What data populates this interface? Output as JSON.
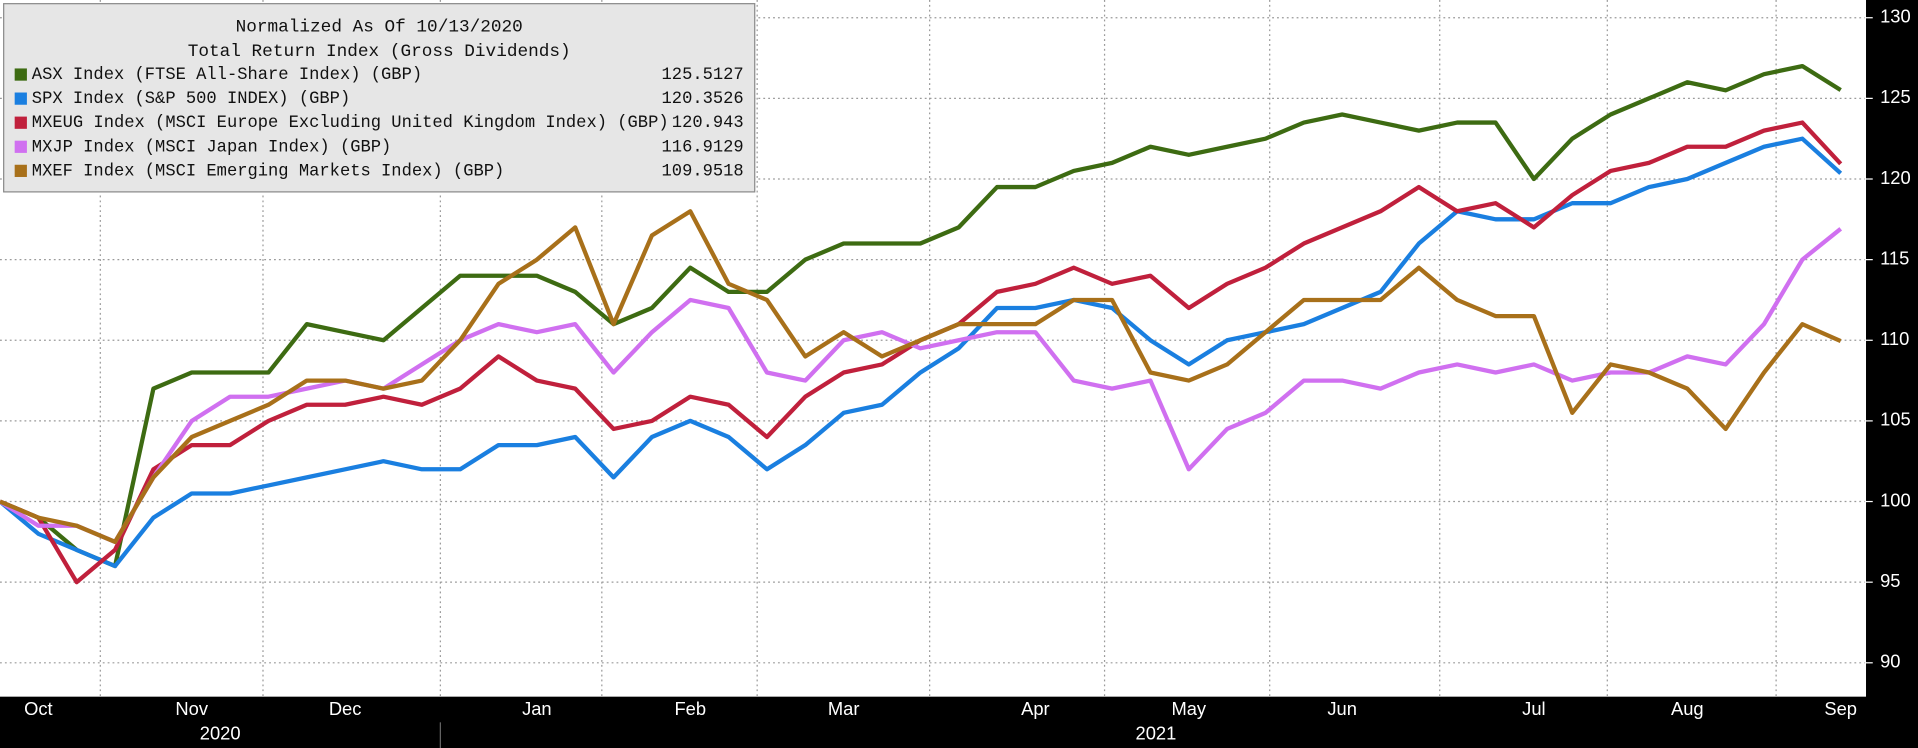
{
  "chart_data": {
    "type": "line",
    "legend_title": [
      "Normalized As Of 10/13/2020",
      "Total Return Index (Gross Dividends)"
    ],
    "legend_position": "upper left",
    "grid": true,
    "categories": [
      null,
      "Oct",
      null,
      null,
      null,
      "Nov",
      null,
      null,
      null,
      "Dec",
      null,
      null,
      null,
      null,
      "Jan",
      null,
      null,
      null,
      "Feb",
      null,
      null,
      null,
      "Mar",
      null,
      null,
      null,
      null,
      "Apr",
      null,
      null,
      null,
      "May",
      null,
      null,
      null,
      "Jun",
      null,
      null,
      null,
      null,
      "Jul",
      null,
      null,
      null,
      "Aug",
      null,
      null,
      null,
      "Sep"
    ],
    "years": [
      "2020",
      "2021"
    ],
    "ylim": [
      87.9,
      131.1
    ],
    "yticks": [
      90,
      95,
      100,
      105,
      110,
      115,
      120,
      125,
      130
    ],
    "series": [
      {
        "name": "ASX Index (FTSE All-Share Index) (GBP)",
        "color": "#3d6b12",
        "values": [
          100,
          99,
          97,
          96,
          107,
          108,
          108,
          108,
          111,
          110.5,
          110,
          112,
          114,
          114,
          114,
          113,
          111,
          112,
          114.5,
          113,
          113,
          115,
          116,
          116,
          116,
          117,
          119.5,
          119.5,
          120.5,
          121,
          122,
          121.5,
          122,
          122.5,
          123.5,
          124,
          123.5,
          123,
          123.5,
          123.5,
          120,
          122.5,
          124,
          125,
          126,
          125.5,
          126.5,
          127,
          125.5127
        ]
      },
      {
        "name": "SPX Index (S&P 500 INDEX) (GBP)",
        "color": "#1a7fe0",
        "values": [
          100,
          98,
          97,
          96,
          99,
          100.5,
          100.5,
          101,
          101.5,
          102,
          102.5,
          102,
          102,
          103.5,
          103.5,
          104,
          101.5,
          104,
          105,
          104,
          102,
          103.5,
          105.5,
          106,
          108,
          109.5,
          112,
          112,
          112.5,
          112,
          110,
          108.5,
          110,
          110.5,
          111,
          112,
          113,
          116,
          118,
          117.5,
          117.5,
          118.5,
          118.5,
          119.5,
          120,
          121,
          122,
          122.5,
          120.3526
        ]
      },
      {
        "name": "MXEUG Index (MSCI Europe Excluding United Kingdom Index) (GBP)",
        "color": "#c0203c",
        "values": [
          100,
          99,
          95,
          97,
          102,
          103.5,
          103.5,
          105,
          106,
          106,
          106.5,
          106,
          107,
          109,
          107.5,
          107,
          104.5,
          105,
          106.5,
          106,
          104,
          106.5,
          108,
          108.5,
          110,
          111,
          113,
          113.5,
          114.5,
          113.5,
          114,
          112,
          113.5,
          114.5,
          116,
          117,
          118,
          119.5,
          118,
          118.5,
          117,
          119,
          120.5,
          121,
          122,
          122,
          123,
          123.5,
          120.943
        ]
      },
      {
        "name": "MXJP Index (MSCI Japan Index) (GBP)",
        "color": "#d070f0",
        "values": [
          100,
          98.5,
          98.5,
          97.5,
          101.5,
          105,
          106.5,
          106.5,
          107,
          107.5,
          107,
          108.5,
          110,
          111,
          110.5,
          111,
          108,
          110.5,
          112.5,
          112,
          108,
          107.5,
          110,
          110.5,
          109.5,
          110,
          110.5,
          110.5,
          107.5,
          107,
          107.5,
          102,
          104.5,
          105.5,
          107.5,
          107.5,
          107,
          108,
          108.5,
          108,
          108.5,
          107.5,
          108,
          108,
          109,
          108.5,
          111,
          115,
          116.9129
        ]
      },
      {
        "name": "MXEF Index (MSCI Emerging Markets Index) (GBP)",
        "color": "#a8701a",
        "values": [
          100,
          99,
          98.5,
          97.5,
          101.5,
          104,
          105,
          106,
          107.5,
          107.5,
          107,
          107.5,
          110,
          113.5,
          115,
          117,
          111,
          116.5,
          118,
          113.5,
          112.5,
          109,
          110.5,
          109,
          110,
          111,
          111,
          111,
          112.5,
          112.5,
          108,
          107.5,
          108.5,
          110.5,
          112.5,
          112.5,
          112.5,
          114.5,
          112.5,
          111.5,
          111.5,
          105.5,
          108.5,
          108,
          107,
          104.5,
          108,
          111,
          109.9518
        ]
      }
    ]
  }
}
